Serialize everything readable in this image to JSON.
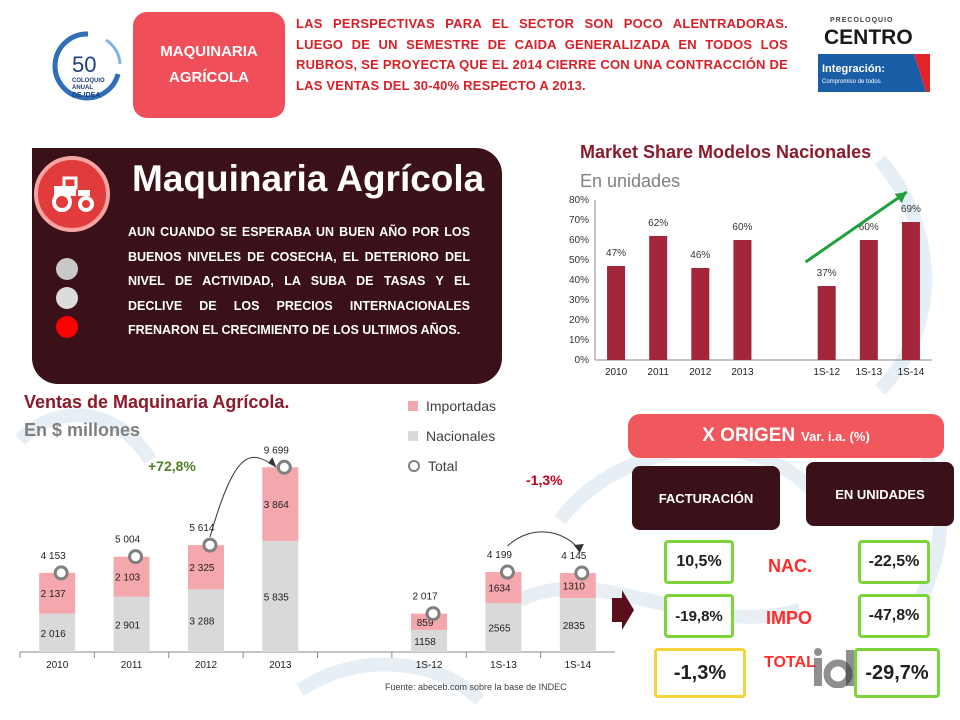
{
  "header": {
    "section_tag": [
      "MAQUINARIA",
      "AGRÍCOLA"
    ],
    "headline": "LAS PERSPECTIVAS PARA EL SECTOR SON POCO ALENTRADORAS. LUEGO DE UN SEMESTRE DE CAIDA GENERALIZADA EN TODOS LOS RUBROS, SE PROYECTA QUE EL 2014 CIERRE CON UNA CONTRACCIÓN DE LAS VENTAS DEL 30-40% RESPECTO A 2013.",
    "logo_left": {
      "number": "50",
      "line1": "COLOQUIO",
      "line2": "ANUAL",
      "line3": "DE IDEA"
    },
    "logo_right": {
      "pre": "PRECOLOQUIO",
      "name": "CENTRO",
      "tag": "Integración:",
      "tag_sub": "Compromiso de todos"
    }
  },
  "panel": {
    "title": "Maquinaria Agrícola",
    "text": "AUN CUANDO SE ESPERABA UN BUEN AÑO POR LOS BUENOS NIVELES DE COSECHA, EL DETERIORO DEL NIVEL DE ACTIVIDAD, LA SUBA DE TASAS Y EL DECLIVE DE LOS PRECIOS INTERNACIONALES FRENARON EL CRECIMIENTO DE LOS ULTIMOS AÑOS.",
    "icon": "tractor-icon",
    "colors": {
      "panel": "#3a1118",
      "circle": "#e23b3b"
    }
  },
  "chart_data": [
    {
      "type": "bar",
      "title": "Market Share Modelos Nacionales",
      "subtitle": "En unidades",
      "categories": [
        "2010",
        "2011",
        "2012",
        "2013",
        "",
        "1S-12",
        "1S-13",
        "1S-14"
      ],
      "values": [
        47,
        62,
        46,
        60,
        null,
        37,
        60,
        69
      ],
      "data_labels": [
        "47%",
        "62%",
        "46%",
        "60%",
        "",
        "37%",
        "60%",
        "69%"
      ],
      "y_ticks": [
        "0%",
        "10%",
        "20%",
        "30%",
        "40%",
        "50%",
        "60%",
        "70%",
        "80%"
      ],
      "ylim": [
        0,
        80
      ],
      "color": "#a3263a",
      "trend_arrow_color": "#1fa03a"
    },
    {
      "type": "bar",
      "stacked": true,
      "title": "Ventas de Maquinaria Agrícola.",
      "subtitle": "En $ millones",
      "categories": [
        "2010",
        "2011",
        "2012",
        "2013",
        "",
        "1S-12",
        "1S-13",
        "1S-14"
      ],
      "series": [
        {
          "name": "Importadas",
          "values": [
            2137,
            2103,
            2325,
            3864,
            null,
            859,
            1634,
            1310
          ],
          "labels": [
            "2 137",
            "2 103",
            "2 325",
            "3 864",
            "",
            "859",
            "1634",
            "1310"
          ],
          "color": "#f4a7ad"
        },
        {
          "name": "Nacionales",
          "values": [
            2016,
            2901,
            3288,
            5835,
            null,
            1158,
            2565,
            2835
          ],
          "labels": [
            "2 016",
            "2 901",
            "3 288",
            "5 835",
            "",
            "1158",
            "2565",
            "2835"
          ],
          "color": "#d9d9d9"
        },
        {
          "name": "Total",
          "values": [
            4153,
            5004,
            5614,
            9699,
            null,
            2017,
            4199,
            4145
          ],
          "labels": [
            "4 153",
            "5 004",
            "5 614",
            "9 699",
            "",
            "2 017",
            "4 199",
            "4 145"
          ],
          "color": "#808080"
        }
      ],
      "annotations": [
        "+72,8%",
        "-1,3%"
      ],
      "source": "Fuente: abeceb.com sobre la base de INDEC"
    }
  ],
  "origen": {
    "title": "X ORIGEN",
    "title_suffix": "Var. i.a. (%)",
    "col_facturacion": "FACTURACIÓN",
    "col_unidades": "EN UNIDADES",
    "rows": [
      {
        "label": "NAC.",
        "facturacion": "10,5%",
        "unidades": "-22,5%"
      },
      {
        "label": "IMPO",
        "facturacion": "-19,8%",
        "unidades": "-47,8%"
      },
      {
        "label": "TOTAL",
        "facturacion": "-1,3%",
        "unidades": "-29,7%"
      }
    ]
  }
}
